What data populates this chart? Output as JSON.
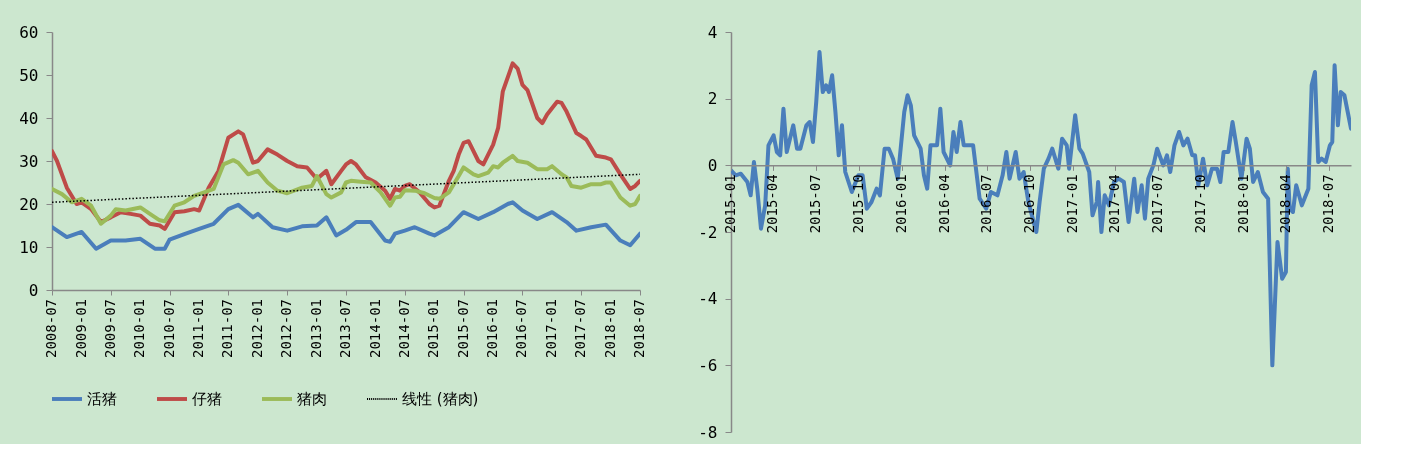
{
  "chart_data": [
    {
      "type": "line",
      "legend": "bottom",
      "ylim": [
        0,
        60
      ],
      "yticks": [
        0,
        10,
        20,
        30,
        40,
        50,
        60
      ],
      "xlim": [
        "2008-07",
        "2018-07"
      ],
      "xticks": [
        "2008-07",
        "2009-01",
        "2009-07",
        "2010-01",
        "2010-07",
        "2011-01",
        "2011-07",
        "2012-01",
        "2012-07",
        "2013-01",
        "2013-07",
        "2014-01",
        "2014-07",
        "2015-01",
        "2015-07",
        "2016-01",
        "2016-07",
        "2017-01",
        "2017-07",
        "2018-01",
        "2018-07"
      ],
      "series": [
        {
          "name": "活猪",
          "color": "#4a7ebb",
          "x": [
            "2008-07",
            "2008-10",
            "2009-01",
            "2009-04",
            "2009-07",
            "2009-10",
            "2010-01",
            "2010-04",
            "2010-06",
            "2010-07",
            "2010-10",
            "2011-01",
            "2011-04",
            "2011-07",
            "2011-09",
            "2011-12",
            "2012-01",
            "2012-04",
            "2012-07",
            "2012-10",
            "2013-01",
            "2013-03",
            "2013-05",
            "2013-07",
            "2013-09",
            "2013-12",
            "2014-03",
            "2014-04",
            "2014-05",
            "2014-07",
            "2014-09",
            "2014-12",
            "2015-01",
            "2015-04",
            "2015-07",
            "2015-10",
            "2016-01",
            "2016-04",
            "2016-05",
            "2016-07",
            "2016-10",
            "2017-01",
            "2017-04",
            "2017-06",
            "2017-09",
            "2017-12",
            "2018-03",
            "2018-05",
            "2018-07"
          ],
          "values": [
            14.6,
            12.3,
            13.5,
            9.6,
            11.5,
            11.5,
            11.9,
            9.6,
            9.6,
            11.7,
            13,
            14.2,
            15.4,
            18.8,
            19.8,
            16.9,
            17.7,
            14.6,
            13.8,
            14.8,
            15,
            16.9,
            12.7,
            14,
            15.8,
            15.8,
            11.5,
            11.2,
            13.1,
            13.8,
            14.6,
            13.1,
            12.7,
            14.6,
            18.1,
            16.5,
            18.1,
            20,
            20.4,
            18.5,
            16.5,
            18.1,
            15.8,
            13.8,
            14.6,
            15.2,
            11.5,
            10.4,
            13.1
          ]
        },
        {
          "name": "仔猪",
          "color": "#be4b48",
          "x": [
            "2008-07",
            "2008-08",
            "2008-10",
            "2008-12",
            "2009-01",
            "2009-03",
            "2009-05",
            "2009-07",
            "2009-09",
            "2009-11",
            "2010-01",
            "2010-03",
            "2010-05",
            "2010-06",
            "2010-08",
            "2010-10",
            "2010-12",
            "2011-01",
            "2011-03",
            "2011-05",
            "2011-07",
            "2011-09",
            "2011-10",
            "2011-12",
            "2012-01",
            "2012-03",
            "2012-05",
            "2012-07",
            "2012-09",
            "2012-11",
            "2013-01",
            "2013-03",
            "2013-04",
            "2013-06",
            "2013-07",
            "2013-08",
            "2013-09",
            "2013-11",
            "2014-01",
            "2014-03",
            "2014-04",
            "2014-05",
            "2014-06",
            "2014-07",
            "2014-08",
            "2014-10",
            "2014-12",
            "2015-01",
            "2015-02",
            "2015-04",
            "2015-05",
            "2015-06",
            "2015-07",
            "2015-08",
            "2015-10",
            "2015-11",
            "2016-01",
            "2016-02",
            "2016-03",
            "2016-05",
            "2016-06",
            "2016-07",
            "2016-08",
            "2016-10",
            "2016-11",
            "2016-12",
            "2017-02",
            "2017-03",
            "2017-04",
            "2017-06",
            "2017-07",
            "2017-08",
            "2017-10",
            "2017-12",
            "2018-01",
            "2018-03",
            "2018-05",
            "2018-06",
            "2018-07"
          ],
          "values": [
            32.3,
            30,
            23.8,
            20,
            20.4,
            18.8,
            15.8,
            16.9,
            18.1,
            17.7,
            17.3,
            15.4,
            15,
            14.2,
            18.1,
            18.3,
            18.8,
            18.5,
            23.8,
            27.7,
            35.4,
            36.9,
            36.2,
            29.6,
            30,
            32.7,
            31.5,
            30,
            28.8,
            28.5,
            25.8,
            27.7,
            24.6,
            27.7,
            29.2,
            30,
            29.2,
            26.2,
            25,
            23.1,
            21.2,
            23.5,
            23.1,
            24.2,
            24.6,
            22.7,
            20,
            19.2,
            19.6,
            25.4,
            27.7,
            31.5,
            34.2,
            34.6,
            30,
            29.2,
            33.8,
            37.7,
            46.2,
            52.7,
            51.5,
            47.7,
            46.5,
            40,
            38.8,
            40.8,
            43.8,
            43.5,
            41.5,
            36.5,
            35.8,
            35,
            31.2,
            30.8,
            30.4,
            26.9,
            23.5,
            24.2,
            25.4
          ]
        },
        {
          "name": "猪肉",
          "color": "#9bbb59",
          "x": [
            "2008-07",
            "2008-09",
            "2008-11",
            "2009-01",
            "2009-03",
            "2009-05",
            "2009-07",
            "2009-08",
            "2009-10",
            "2010-01",
            "2010-03",
            "2010-05",
            "2010-06",
            "2010-08",
            "2010-10",
            "2010-12",
            "2011-02",
            "2011-04",
            "2011-06",
            "2011-08",
            "2011-09",
            "2011-11",
            "2012-01",
            "2012-03",
            "2012-05",
            "2012-07",
            "2012-10",
            "2012-12",
            "2013-01",
            "2013-03",
            "2013-04",
            "2013-06",
            "2013-07",
            "2013-08",
            "2013-10",
            "2013-12",
            "2014-02",
            "2014-04",
            "2014-05",
            "2014-06",
            "2014-07",
            "2014-09",
            "2014-11",
            "2015-01",
            "2015-02",
            "2015-04",
            "2015-06",
            "2015-07",
            "2015-09",
            "2015-10",
            "2015-12",
            "2016-01",
            "2016-02",
            "2016-03",
            "2016-05",
            "2016-06",
            "2016-08",
            "2016-10",
            "2016-12",
            "2017-01",
            "2017-03",
            "2017-04",
            "2017-05",
            "2017-07",
            "2017-09",
            "2017-11",
            "2017-12",
            "2018-01",
            "2018-03",
            "2018-05",
            "2018-06",
            "2018-07"
          ],
          "values": [
            23.5,
            22.3,
            20.4,
            21.2,
            19.6,
            15.4,
            17.3,
            18.8,
            18.5,
            19.2,
            17.7,
            16.2,
            16,
            19.6,
            20.4,
            21.9,
            22.7,
            23.5,
            29.2,
            30.2,
            29.6,
            26.9,
            27.7,
            25,
            23.1,
            22.5,
            23.8,
            24.2,
            26.5,
            22.3,
            21.5,
            22.7,
            25,
            25.4,
            25.2,
            25,
            22.7,
            19.6,
            21.5,
            21.7,
            23.2,
            23.1,
            22.5,
            21.4,
            21.2,
            22.7,
            26.5,
            28.5,
            26.9,
            26.5,
            27.3,
            28.8,
            28.5,
            29.6,
            31.2,
            30,
            29.6,
            28.1,
            28.1,
            28.8,
            26.9,
            26.2,
            24.2,
            23.8,
            24.6,
            24.6,
            25,
            25,
            21.5,
            19.6,
            20,
            21.9
          ]
        },
        {
          "name": "线性 (猪肉)",
          "color": "#000000",
          "line_style": "dotted",
          "x": [
            "2008-07",
            "2018-07"
          ],
          "values": [
            20.4,
            26.9
          ]
        }
      ]
    },
    {
      "type": "line",
      "ylim": [
        -8,
        4
      ],
      "yticks": [
        -8,
        -6,
        -4,
        -2,
        0,
        2,
        4
      ],
      "xlim": [
        "2015-01-01",
        "2018-08-17"
      ],
      "xticks": [
        "2015-01",
        "2015-04",
        "2015-07",
        "2015-10",
        "2016-01",
        "2016-04",
        "2016-07",
        "2016-10",
        "2017-01",
        "2017-04",
        "2017-07",
        "2017-10",
        "2018-01",
        "2018-04",
        "2018-07"
      ],
      "series": [
        {
          "color": "#4a7ebb",
          "x": [
            "2015-01-01",
            "2015-01-11",
            "2015-01-22",
            "2015-02-05",
            "2015-02-12",
            "2015-02-19",
            "2015-02-26",
            "2015-03-06",
            "2015-03-15",
            "2015-03-22",
            "2015-04-02",
            "2015-04-09",
            "2015-04-16",
            "2015-04-23",
            "2015-04-30",
            "2015-05-14",
            "2015-05-22",
            "2015-05-29",
            "2015-06-11",
            "2015-06-18",
            "2015-06-25",
            "2015-07-02",
            "2015-07-09",
            "2015-07-16",
            "2015-07-23",
            "2015-07-29",
            "2015-08-05",
            "2015-08-12",
            "2015-08-19",
            "2015-08-26",
            "2015-09-02",
            "2015-09-16",
            "2015-09-30",
            "2015-10-09",
            "2015-10-18",
            "2015-10-28",
            "2015-11-08",
            "2015-11-15",
            "2015-11-25",
            "2015-12-04",
            "2015-12-13",
            "2015-12-23",
            "2016-01-06",
            "2016-01-13",
            "2016-01-20",
            "2016-01-27",
            "2016-02-10",
            "2016-02-17",
            "2016-02-24",
            "2016-03-02",
            "2016-03-16",
            "2016-03-23",
            "2016-03-30",
            "2016-04-13",
            "2016-04-20",
            "2016-04-27",
            "2016-05-05",
            "2016-05-12",
            "2016-06-01",
            "2016-06-15",
            "2016-06-29",
            "2016-07-09",
            "2016-07-23",
            "2016-08-03",
            "2016-08-11",
            "2016-08-18",
            "2016-08-31",
            "2016-09-08",
            "2016-09-17",
            "2016-09-27",
            "2016-10-14",
            "2016-10-21",
            "2016-10-30",
            "2016-11-09",
            "2016-11-17",
            "2016-11-30",
            "2016-12-08",
            "2016-12-18",
            "2016-12-23",
            "2017-01-05",
            "2017-01-14",
            "2017-01-21",
            "2017-02-04",
            "2017-02-11",
            "2017-02-20",
            "2017-02-23",
            "2017-03-02",
            "2017-03-09",
            "2017-03-18",
            "2017-03-29",
            "2017-04-08",
            "2017-04-19",
            "2017-04-29",
            "2017-05-11",
            "2017-05-18",
            "2017-05-27",
            "2017-06-03",
            "2017-06-10",
            "2017-06-21",
            "2017-06-29",
            "2017-07-12",
            "2017-07-20",
            "2017-07-27",
            "2017-08-05",
            "2017-08-15",
            "2017-08-24",
            "2017-09-02",
            "2017-09-12",
            "2017-09-18",
            "2017-09-25",
            "2017-10-05",
            "2017-10-14",
            "2017-10-24",
            "2017-11-04",
            "2017-11-11",
            "2017-11-18",
            "2017-11-28",
            "2017-12-07",
            "2017-12-14",
            "2017-12-26",
            "2018-01-06",
            "2018-01-13",
            "2018-01-20",
            "2018-01-30",
            "2018-02-10",
            "2018-02-21",
            "2018-03-02",
            "2018-03-13",
            "2018-03-23",
            "2018-03-31",
            "2018-04-04",
            "2018-04-08",
            "2018-04-15",
            "2018-04-22",
            "2018-05-04",
            "2018-05-18",
            "2018-05-25",
            "2018-06-01",
            "2018-06-08",
            "2018-06-15",
            "2018-06-24",
            "2018-07-03",
            "2018-07-08",
            "2018-07-13",
            "2018-07-20",
            "2018-07-26",
            "2018-08-03",
            "2018-08-10",
            "2018-08-17"
          ],
          "values": [
            -0.15,
            -0.3,
            -0.25,
            -0.5,
            -0.9,
            0.1,
            -0.7,
            -1.9,
            -1.2,
            0.6,
            0.9,
            0.4,
            0.3,
            1.7,
            0.4,
            1.2,
            0.5,
            0.5,
            1.2,
            1.3,
            0.7,
            1.9,
            3.4,
            2.2,
            2.4,
            2.2,
            2.7,
            1.6,
            0.3,
            1.2,
            -0.2,
            -0.8,
            -0.3,
            -0.3,
            -1.3,
            -1.1,
            -0.7,
            -0.9,
            0.5,
            0.5,
            0.2,
            -0.4,
            1.6,
            2.1,
            1.8,
            0.9,
            0.5,
            -0.3,
            -0.7,
            0.6,
            0.6,
            1.7,
            0.4,
            0,
            1.0,
            0.4,
            1.3,
            0.6,
            0.6,
            -1.0,
            -1.3,
            -0.8,
            -0.9,
            -0.3,
            0.4,
            -0.4,
            0.4,
            -0.4,
            -0.2,
            -1.1,
            -2.0,
            -1.1,
            -0.1,
            0.2,
            0.5,
            -0.1,
            0.8,
            0.6,
            -0.1,
            1.5,
            0.5,
            0.35,
            -0.2,
            -1.5,
            -1.1,
            -0.5,
            -2.0,
            -0.9,
            -1.2,
            -0.5,
            -0.4,
            -0.5,
            -1.7,
            -0.4,
            -1.4,
            -0.6,
            -1.6,
            -0.4,
            0,
            0.5,
            0,
            0.3,
            -0.2,
            0.6,
            1.0,
            0.6,
            0.8,
            0.3,
            0.3,
            -0.6,
            0.2,
            -0.6,
            -0.1,
            -0.1,
            -0.5,
            0.4,
            0.4,
            1.3,
            0.7,
            -0.4,
            0.8,
            0.5,
            -0.5,
            -0.2,
            -0.8,
            -1.0,
            -6.0,
            -2.3,
            -3.4,
            -3.2,
            -0.1,
            -1.3,
            -1.4,
            -0.6,
            -1.2,
            -0.7,
            2.4,
            2.8,
            0.1,
            0.2,
            0.1,
            0.6,
            0.7,
            3.0,
            1.2,
            2.2,
            2.1,
            1.6,
            1.1
          ]
        }
      ]
    }
  ]
}
